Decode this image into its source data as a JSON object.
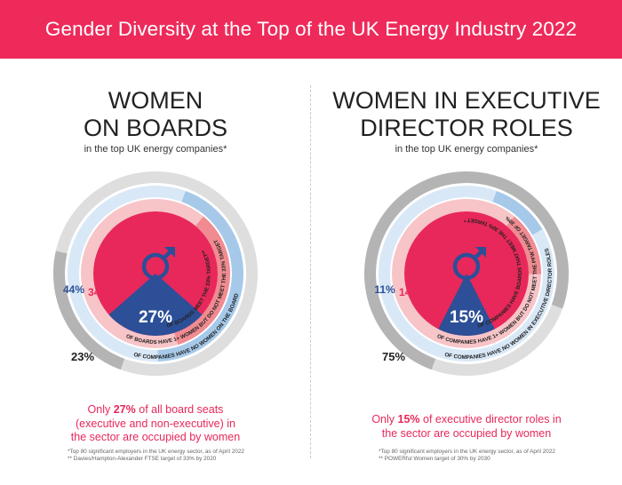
{
  "title": "Gender Diversity at the Top of the UK Energy Industry 2022",
  "colors": {
    "banner": "#ee2a5b",
    "accent": "#e8285a",
    "navy": "#2c4f97",
    "light_blue": "#a6c9ea",
    "pale_blue": "#d8e8f7",
    "grey": "#b4b4b4",
    "light_grey": "#dedede",
    "salmon": "#f08b92",
    "pale_pink": "#f7c4c8"
  },
  "panels": [
    {
      "heading_line1": "WOMEN",
      "heading_line2": "ON BOARDS",
      "subheading": "in the top UK energy companies*",
      "summary_pre": "Only ",
      "summary_bold": "27%",
      "summary_line1_rest": " of all board seats",
      "summary_line2": "(executive and non-executive) in",
      "summary_line3": "the sector are occupied by women",
      "footnote1": "*Top 80 significant employers in the UK energy sector, as of April 2022",
      "footnote2": "** Davies/Hampton-Alexander FTSE target of 33% by 2020"
    },
    {
      "heading_line1": "WOMEN IN EXECUTIVE",
      "heading_line2": "DIRECTOR ROLES",
      "subheading": "in the top UK energy companies*",
      "summary_pre": "Only ",
      "summary_bold": "15%",
      "summary_line1_rest": " of executive director roles in",
      "summary_line2": "the sector are occupied by women",
      "summary_line3": "",
      "footnote1": "*Top 80 significant employers in the UK energy sector, as of April 2022",
      "footnote2": "** POWERful Women target of 30% by 2030"
    }
  ],
  "chart_data": [
    {
      "type": "pie",
      "title": "WOMEN ON BOARDS",
      "center_value": 27,
      "center_label": "27%",
      "rings": [
        {
          "value": 34,
          "label_value": "34%",
          "text": "OF BOARDS MEET THE 33% TARGET**"
        },
        {
          "value": 44,
          "label_value": "44%",
          "text": "OF BOARDS HAVE 1+ WOMEN BUT DO NOT MEET THE 33% TARGET"
        },
        {
          "value": 23,
          "label_value": "23%",
          "text": "OF COMPANIES HAVE NO WOMEN ON THE BOARD"
        }
      ]
    },
    {
      "type": "pie",
      "title": "WOMEN IN EXECUTIVE DIRECTOR ROLES",
      "center_value": 15,
      "center_label": "15%",
      "rings": [
        {
          "value": 14,
          "label_value": "14%",
          "text": "OF COMPANIES HAVE BOARDS THAT MEET THE 30% TARGET **"
        },
        {
          "value": 11,
          "label_value": "11%",
          "text": "OF COMPANIES HAVE 1+ WOMEN BUT DO NOT MEET THE PFW TARGET OF 30%"
        },
        {
          "value": 75,
          "label_value": "75%",
          "text": "OF COMPANIES HAVE NO WOMEN IN EXECUTIVE DIRECTOR ROLES"
        }
      ]
    }
  ]
}
